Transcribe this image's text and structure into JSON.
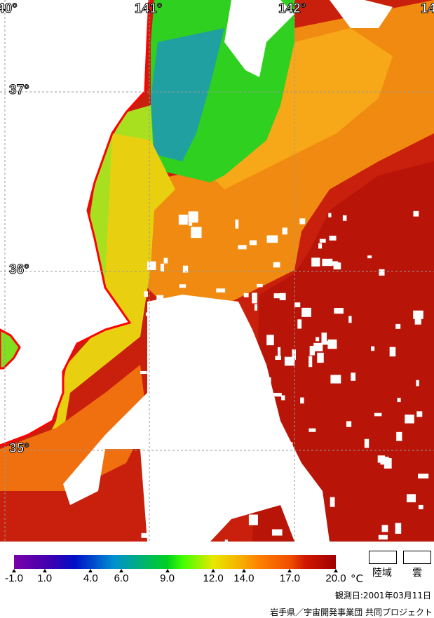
{
  "map": {
    "longitude_labels": [
      "40°",
      "141°",
      "142°",
      "14"
    ],
    "latitude_labels": [
      "37°",
      "36°",
      "35°"
    ],
    "colors": {
      "land": "#ffffff",
      "cloud": "#ffffff",
      "coastline": "#ff0000",
      "grid": "#999999"
    }
  },
  "legend": {
    "colorbar": {
      "min": -1.0,
      "max": 20.0,
      "ticks": [
        {
          "value": -1.0,
          "label": "-1.0"
        },
        {
          "value": 1.0,
          "label": "1.0"
        },
        {
          "value": 4.0,
          "label": "4.0"
        },
        {
          "value": 6.0,
          "label": "6.0"
        },
        {
          "value": 9.0,
          "label": "9.0"
        },
        {
          "value": 12.0,
          "label": "12.0"
        },
        {
          "value": 14.0,
          "label": "14.0"
        },
        {
          "value": 17.0,
          "label": "17.0"
        },
        {
          "value": 20.0,
          "label": "20.0"
        }
      ],
      "unit": "°C",
      "color_stops": [
        {
          "value": -1,
          "color": "#7a00aa"
        },
        {
          "value": 1.5,
          "color": "#3a00b0"
        },
        {
          "value": 3,
          "color": "#0010c8"
        },
        {
          "value": 5.5,
          "color": "#0090d0"
        },
        {
          "value": 9,
          "color": "#00d020"
        },
        {
          "value": 10,
          "color": "#40ff00"
        },
        {
          "value": 12,
          "color": "#e8e800"
        },
        {
          "value": 14,
          "color": "#f8a800"
        },
        {
          "value": 15,
          "color": "#ff8000"
        },
        {
          "value": 17,
          "color": "#f05000"
        },
        {
          "value": 18,
          "color": "#d01800"
        },
        {
          "value": 20,
          "color": "#a00000"
        }
      ]
    },
    "land_label": "陸域",
    "cloud_label": "雲"
  },
  "observation_date": "観測日:2001年03月11日",
  "credit": "岩手県／宇宙開発事業団  共同プロジェクト"
}
